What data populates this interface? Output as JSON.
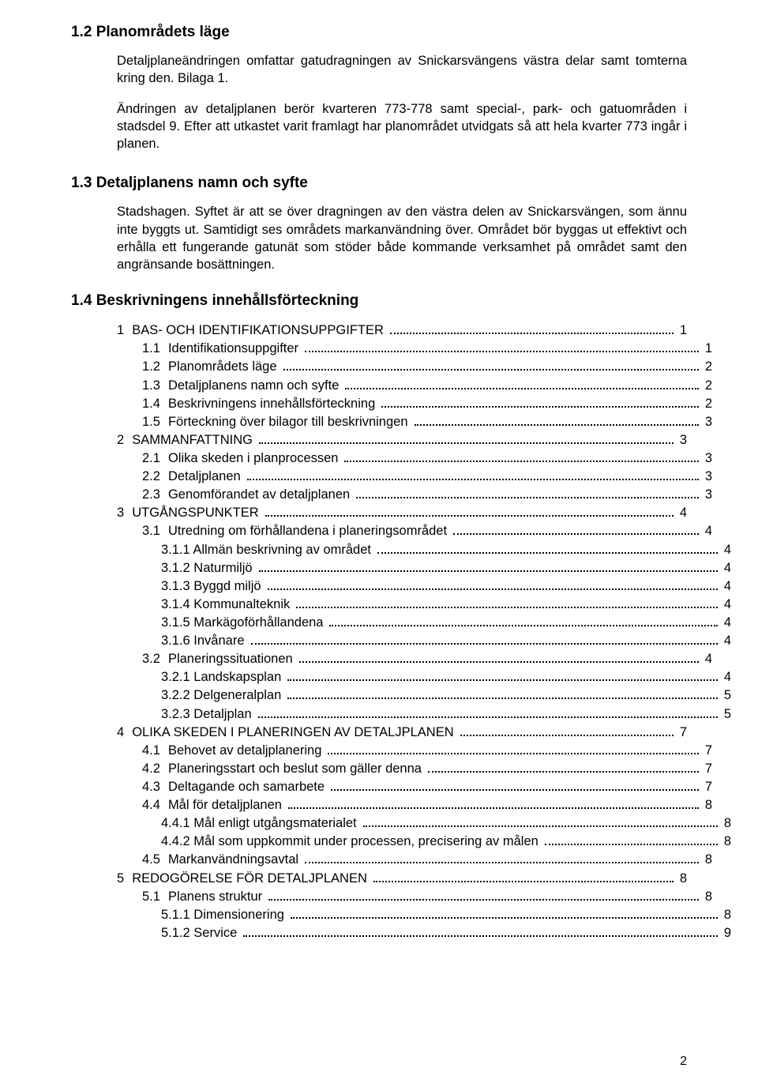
{
  "sections": {
    "s12": {
      "heading": "1.2  Planområdets läge",
      "paragraphs": [
        "Detaljplaneändringen omfattar gatudragningen av Snickarsvängens västra delar samt tomterna kring den. Bilaga 1.",
        "Ändringen av detaljplanen berör kvarteren 773-778 samt special-, park- och gatuområden i stadsdel 9. Efter att utkastet varit framlagt har planområdet utvidgats så att hela kvarter 773 ingår i planen."
      ]
    },
    "s13": {
      "heading": "1.3  Detaljplanens namn och syfte",
      "paragraphs": [
        "Stadshagen. Syftet är att se över dragningen av den västra delen av Snickarsvängen, som ännu inte byggts ut. Samtidigt ses områdets markanvändning över. Området bör byggas ut effektivt och erhålla ett fungerande gatunät som stöder både kommande verksamhet på området samt den angränsande bosättningen."
      ]
    },
    "s14": {
      "heading": "1.4  Beskrivningens innehållsförteckning"
    }
  },
  "toc": [
    {
      "num": "1",
      "label": "BAS- OCH IDENTIFIKATIONSUPPGIFTER",
      "page": "1",
      "indent": 0
    },
    {
      "num": "1.1",
      "label": "Identifikationsuppgifter",
      "page": "1",
      "indent": 1
    },
    {
      "num": "1.2",
      "label": "Planområdets läge",
      "page": "2",
      "indent": 1
    },
    {
      "num": "1.3",
      "label": "Detaljplanens namn och syfte",
      "page": "2",
      "indent": 1
    },
    {
      "num": "1.4",
      "label": "Beskrivningens innehållsförteckning",
      "page": "2",
      "indent": 1
    },
    {
      "num": "1.5",
      "label": "Förteckning över bilagor till beskrivningen",
      "page": "3",
      "indent": 1
    },
    {
      "num": "2",
      "label": "SAMMANFATTNING",
      "page": "3",
      "indent": 0
    },
    {
      "num": "2.1",
      "label": "Olika skeden i planprocessen",
      "page": "3",
      "indent": 1
    },
    {
      "num": "2.2",
      "label": "Detaljplanen",
      "page": "3",
      "indent": 1
    },
    {
      "num": "2.3",
      "label": "Genomförandet av detaljplanen",
      "page": "3",
      "indent": 1
    },
    {
      "num": "3",
      "label": "UTGÅNGSPUNKTER",
      "page": "4",
      "indent": 0
    },
    {
      "num": "3.1",
      "label": "Utredning om förhållandena i planeringsområdet",
      "page": "4",
      "indent": 1
    },
    {
      "num": "",
      "label": "3.1.1 Allmän beskrivning av området",
      "page": "4",
      "indent": 2
    },
    {
      "num": "",
      "label": "3.1.2 Naturmiljö",
      "page": "4",
      "indent": 2
    },
    {
      "num": "",
      "label": "3.1.3 Byggd miljö",
      "page": "4",
      "indent": 2
    },
    {
      "num": "",
      "label": "3.1.4 Kommunalteknik",
      "page": "4",
      "indent": 2
    },
    {
      "num": "",
      "label": "3.1.5 Markägoförhållandena",
      "page": "4",
      "indent": 2
    },
    {
      "num": "",
      "label": "3.1.6 Invånare",
      "page": "4",
      "indent": 2
    },
    {
      "num": "3.2",
      "label": "Planeringssituationen",
      "page": "4",
      "indent": 1
    },
    {
      "num": "",
      "label": "3.2.1 Landskapsplan",
      "page": "4",
      "indent": 2
    },
    {
      "num": "",
      "label": "3.2.2 Delgeneralplan",
      "page": "5",
      "indent": 2
    },
    {
      "num": "",
      "label": "3.2.3 Detaljplan",
      "page": "5",
      "indent": 2
    },
    {
      "num": "4",
      "label": "OLIKA SKEDEN I PLANERINGEN AV DETALJPLANEN",
      "page": "7",
      "indent": 0
    },
    {
      "num": "4.1",
      "label": "Behovet av detaljplanering",
      "page": "7",
      "indent": 1
    },
    {
      "num": "4.2",
      "label": "Planeringsstart och beslut som gäller denna",
      "page": "7",
      "indent": 1
    },
    {
      "num": "4.3",
      "label": "Deltagande och samarbete",
      "page": "7",
      "indent": 1
    },
    {
      "num": "4.4",
      "label": "Mål för detaljplanen",
      "page": "8",
      "indent": 1
    },
    {
      "num": "",
      "label": "4.4.1 Mål enligt utgångsmaterialet",
      "page": "8",
      "indent": 2
    },
    {
      "num": "",
      "label": "4.4.2 Mål som uppkommit under processen, precisering av målen",
      "page": "8",
      "indent": 2
    },
    {
      "num": "4.5",
      "label": "Markanvändningsavtal",
      "page": "8",
      "indent": 1
    },
    {
      "num": "5",
      "label": "REDOGÖRELSE FÖR DETALJPLANEN",
      "page": "8",
      "indent": 0
    },
    {
      "num": "5.1",
      "label": "Planens struktur",
      "page": "8",
      "indent": 1
    },
    {
      "num": "",
      "label": "5.1.1 Dimensionering",
      "page": "8",
      "indent": 2
    },
    {
      "num": "",
      "label": "5.1.2 Service",
      "page": "9",
      "indent": 2
    }
  ],
  "pageNumber": "2"
}
